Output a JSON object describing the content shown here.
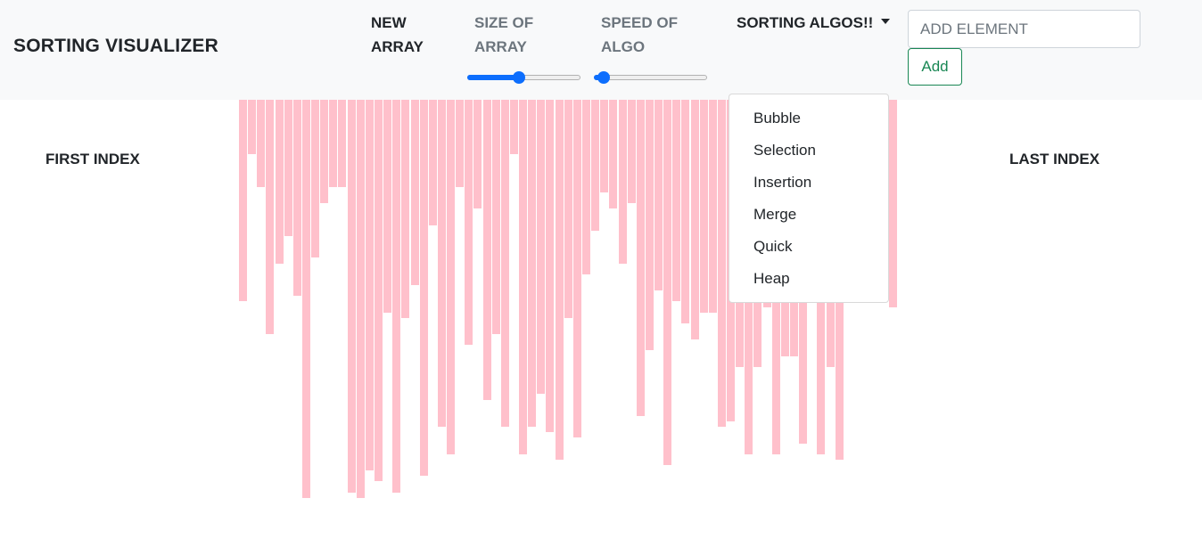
{
  "navbar": {
    "brand": "SORTING VISUALIZER",
    "new_array": [
      "NEW",
      "ARRAY"
    ],
    "size_of_array": [
      "SIZE OF",
      "ARRAY"
    ],
    "speed_of_algo": [
      "SPEED OF",
      "ALGO"
    ],
    "size_slider": {
      "value": 0.46
    },
    "speed_slider": {
      "value": 0.09
    },
    "sorting_algos": "SORTING ALGOS!!",
    "add_input": {
      "placeholder": "ADD ELEMENT",
      "value": ""
    },
    "add_button": "Add"
  },
  "dropdown": {
    "items": [
      "Bubble",
      "Selection",
      "Insertion",
      "Merge",
      "Quick",
      "Heap"
    ]
  },
  "labels": {
    "first_index": "FIRST INDEX",
    "last_index": "LAST INDEX"
  },
  "colors": {
    "bar": "#ffc0cb",
    "accent": "#0d6efd",
    "success": "#198754",
    "navbar_bg": "#f8f9fa"
  },
  "array": [
    226,
    61,
    98,
    263,
    184,
    153,
    220,
    447,
    177,
    116,
    98,
    98,
    441,
    447,
    416,
    428,
    239,
    441,
    245,
    208,
    422,
    141,
    367,
    398,
    98,
    275,
    122,
    337,
    263,
    367,
    61,
    398,
    367,
    330,
    373,
    404,
    245,
    379,
    196,
    147,
    104,
    122,
    184,
    116,
    355,
    281,
    214,
    410,
    226,
    251,
    269,
    239,
    239,
    367,
    361,
    300,
    398,
    300,
    233,
    398,
    288,
    288,
    386,
    141,
    398,
    300,
    404,
    141,
    79,
    98,
    184,
    110,
    233
  ]
}
